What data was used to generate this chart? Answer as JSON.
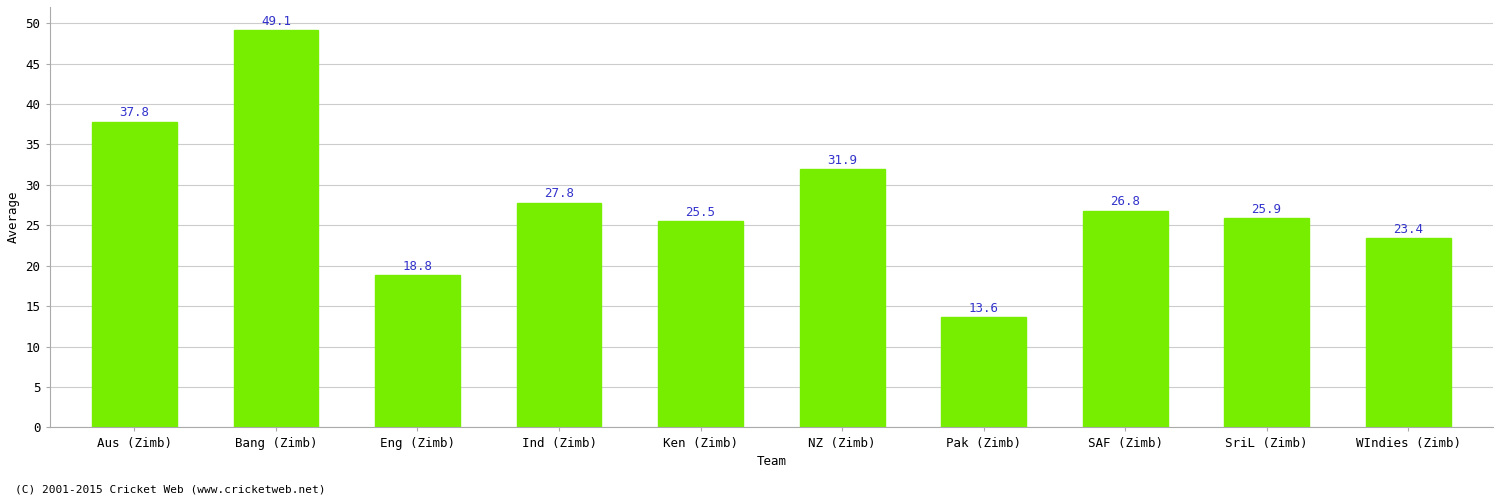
{
  "categories": [
    "Aus (Zimb)",
    "Bang (Zimb)",
    "Eng (Zimb)",
    "Ind (Zimb)",
    "Ken (Zimb)",
    "NZ (Zimb)",
    "Pak (Zimb)",
    "SAF (Zimb)",
    "SriL (Zimb)",
    "WIndies (Zimb)"
  ],
  "values": [
    37.8,
    49.1,
    18.8,
    27.8,
    25.5,
    31.9,
    13.6,
    26.8,
    25.9,
    23.4
  ],
  "bar_color": "#77ee00",
  "bar_edge_color": "#77ee00",
  "label_color": "#3333cc",
  "xlabel": "Team",
  "ylabel": "Average",
  "ylim": [
    0,
    52
  ],
  "yticks": [
    0,
    5,
    10,
    15,
    20,
    25,
    30,
    35,
    40,
    45,
    50
  ],
  "grid_color": "#cccccc",
  "bg_color": "#ffffff",
  "footer": "(C) 2001-2015 Cricket Web (www.cricketweb.net)",
  "label_fontsize": 9,
  "axis_label_fontsize": 9,
  "tick_fontsize": 9,
  "footer_fontsize": 8,
  "bar_width": 0.6
}
